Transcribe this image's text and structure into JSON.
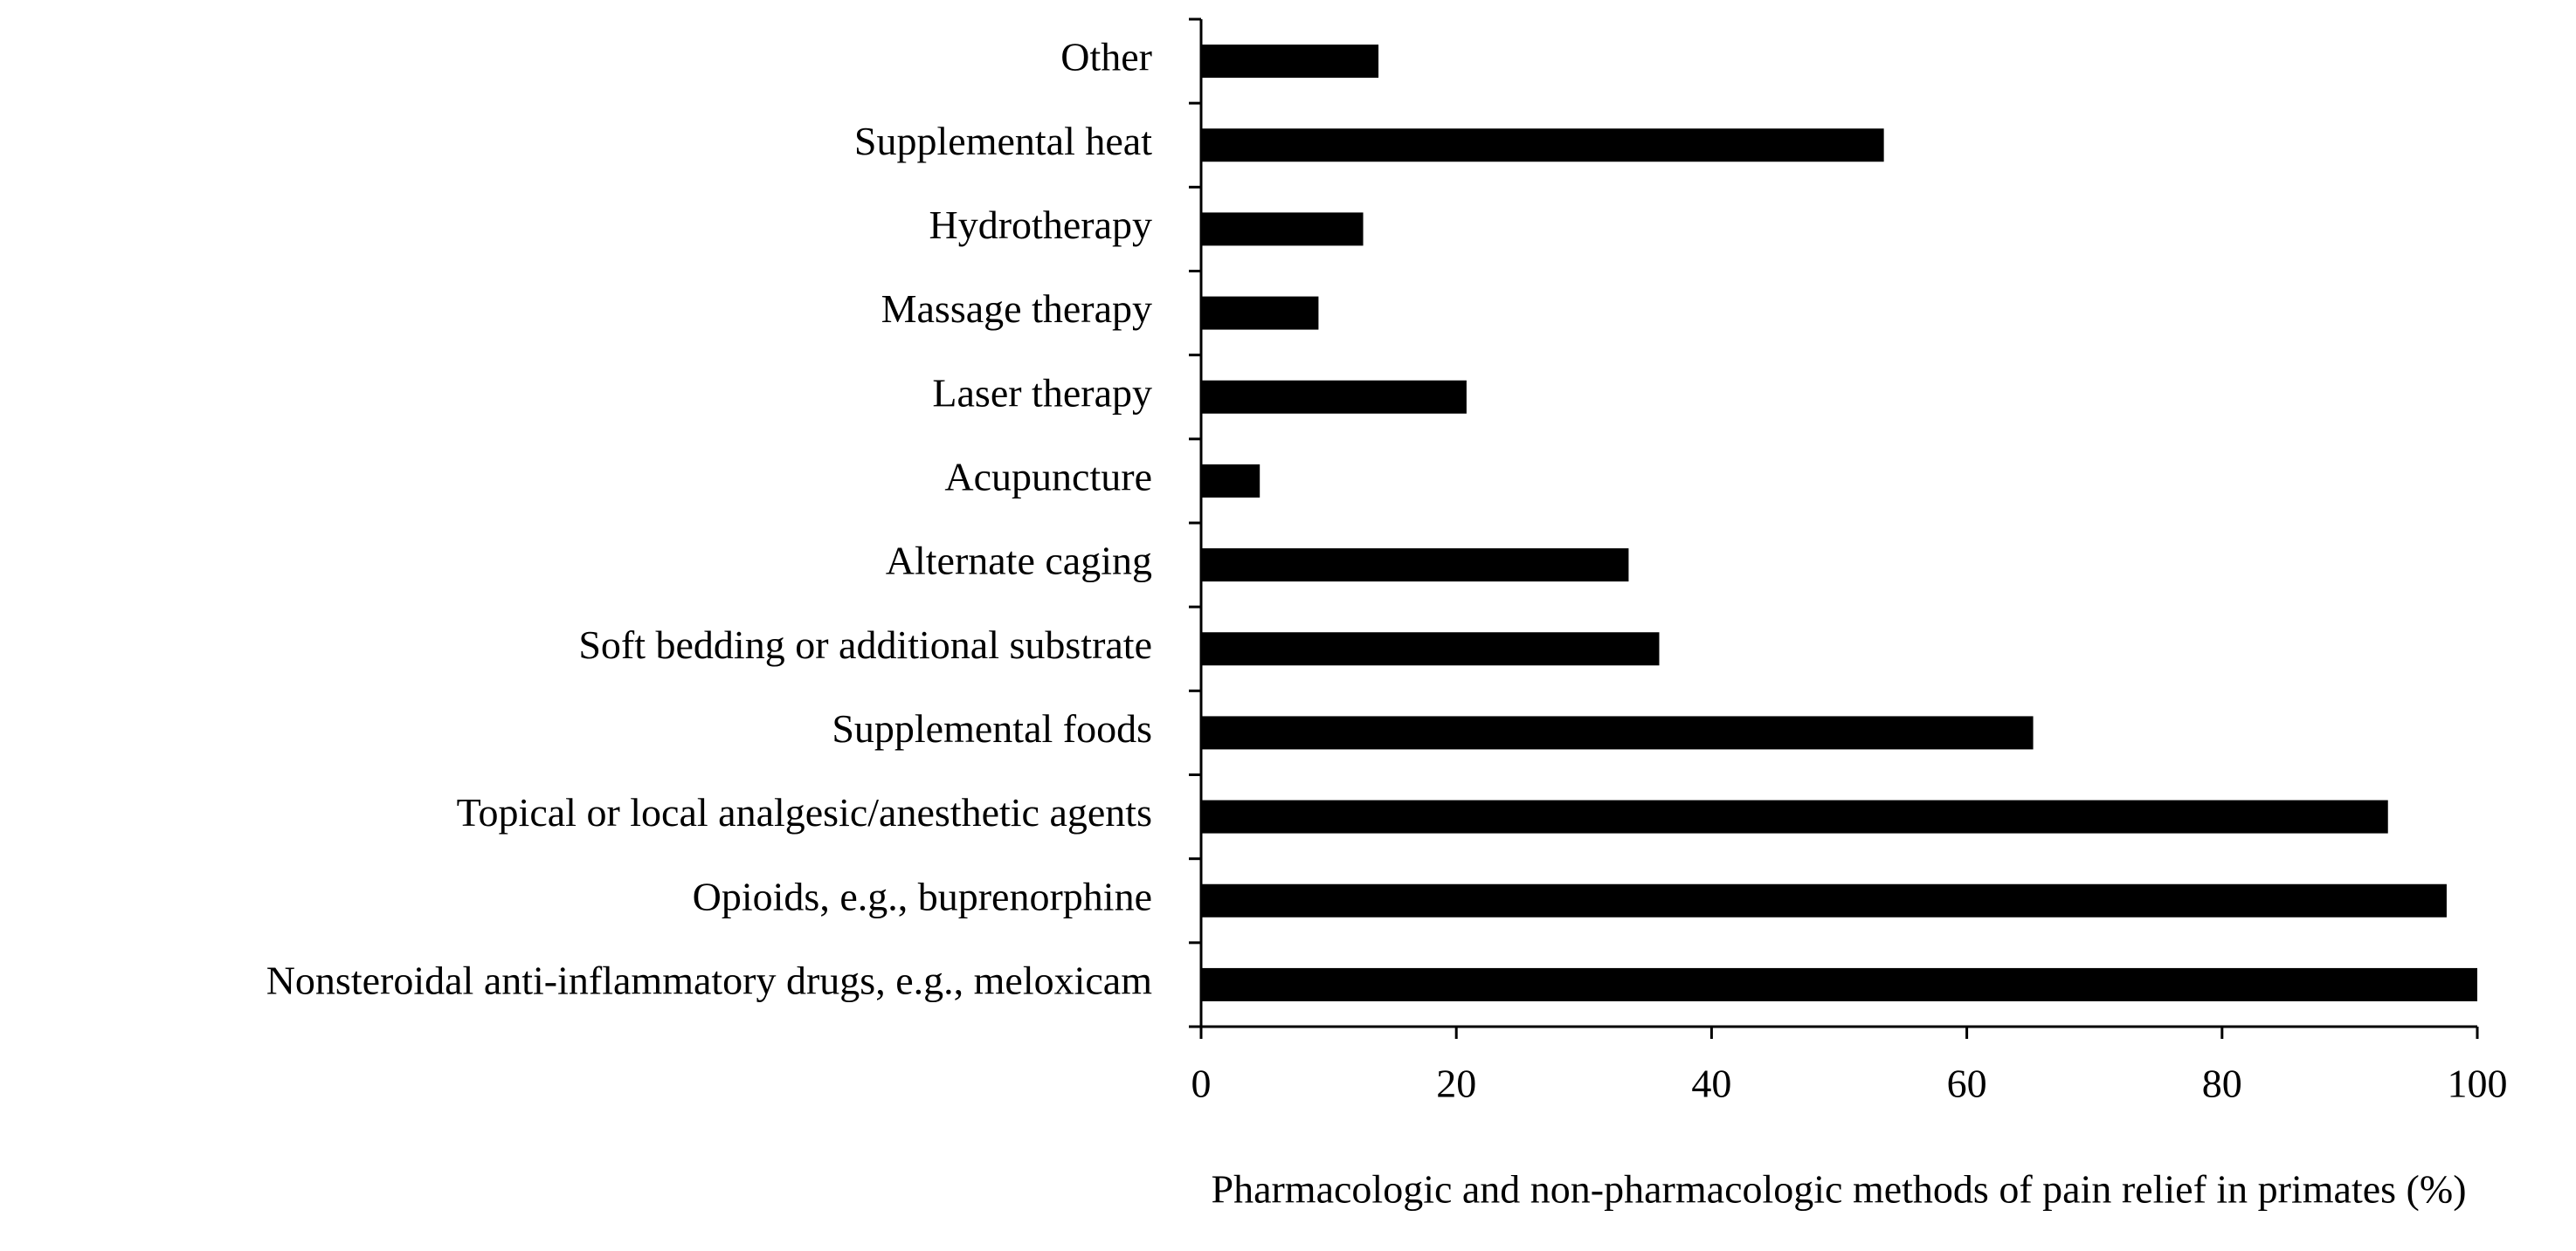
{
  "chart_data": {
    "type": "barh",
    "x_label": "Pharmacologic and non-pharmacologic methods of pain relief in primates (%)",
    "categories": [
      "Other",
      "Supplemental heat",
      "Hydrotherapy",
      "Massage therapy",
      "Laser therapy",
      "Acupuncture",
      "Alternate caging",
      "Soft bedding or additional substrate",
      "Supplemental foods",
      "Topical or local analgesic/anesthetic agents",
      "Opioids, e.g., buprenorphine",
      "Nonsteroidal anti-inflammatory drugs, e.g., meloxicam"
    ],
    "values": [
      13.9,
      53.5,
      12.7,
      9.2,
      20.8,
      4.6,
      33.5,
      35.9,
      65.2,
      93,
      97.6,
      100
    ],
    "color": "#000000",
    "xlim": [
      0,
      100
    ],
    "xticks": [
      0,
      20,
      40,
      60,
      80,
      100
    ],
    "grid": false
  }
}
